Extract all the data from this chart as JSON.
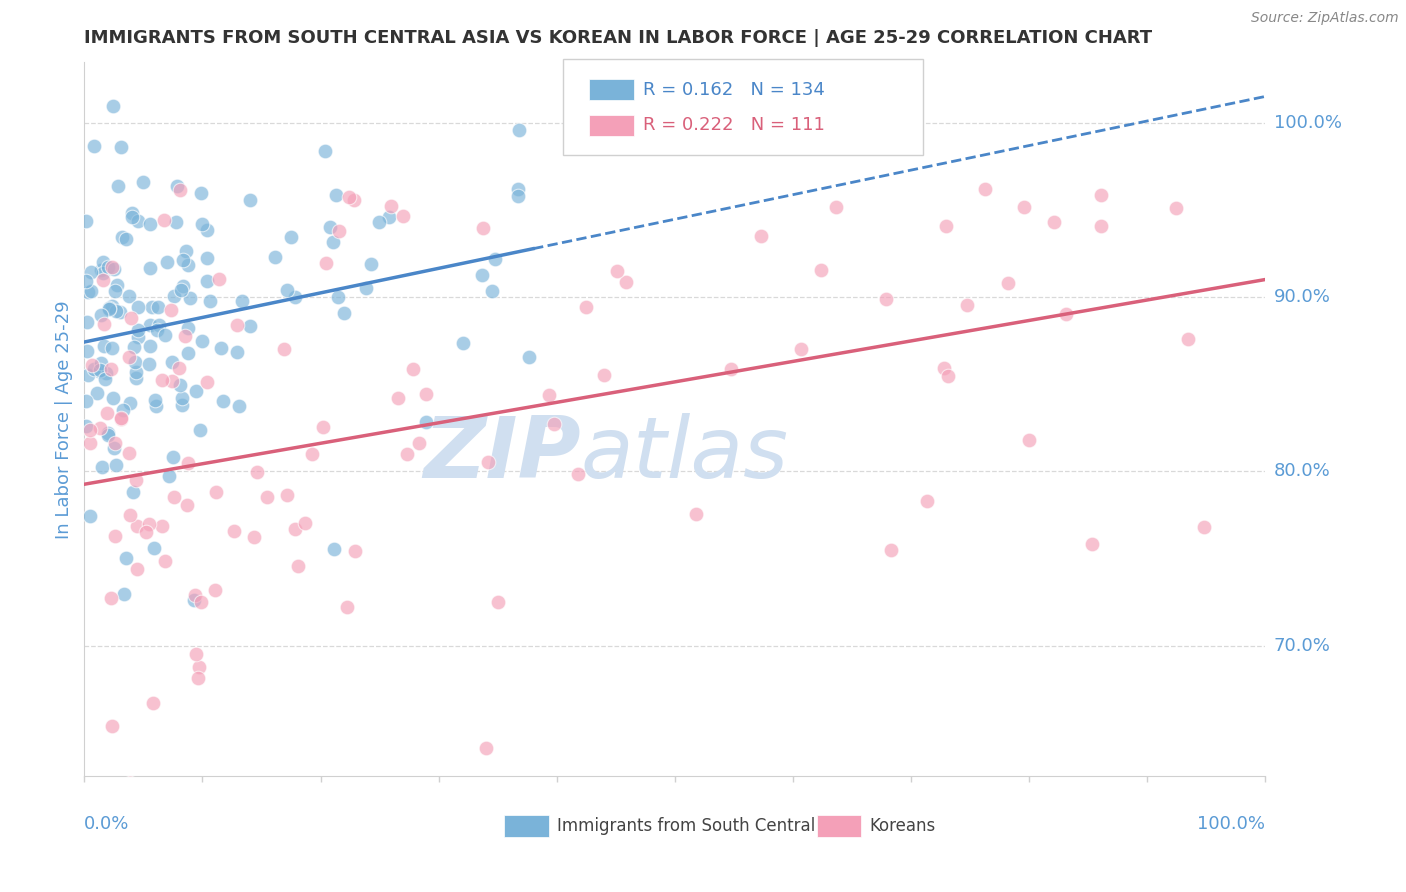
{
  "title": "IMMIGRANTS FROM SOUTH CENTRAL ASIA VS KOREAN IN LABOR FORCE | AGE 25-29 CORRELATION CHART",
  "source_text": "Source: ZipAtlas.com",
  "ylabel": "In Labor Force | Age 25-29",
  "xlim": [
    0.0,
    1.0
  ],
  "ylim": [
    0.625,
    1.035
  ],
  "y_tick_labels": [
    "70.0%",
    "80.0%",
    "90.0%",
    "100.0%"
  ],
  "y_tick_positions": [
    0.7,
    0.8,
    0.9,
    1.0
  ],
  "legend_blue_R": "0.162",
  "legend_blue_N": "134",
  "legend_pink_R": "0.222",
  "legend_pink_N": "111",
  "blue_color": "#7ab3d9",
  "pink_color": "#f4a0b8",
  "blue_line_color": "#4a86c8",
  "pink_line_color": "#d9607a",
  "watermark_zip": "ZIP",
  "watermark_atlas": "atlas",
  "watermark_color": "#d0dff0",
  "background_color": "#ffffff",
  "grid_color": "#d0d0d0",
  "axis_label_color": "#5b9bd5",
  "title_color": "#333333"
}
